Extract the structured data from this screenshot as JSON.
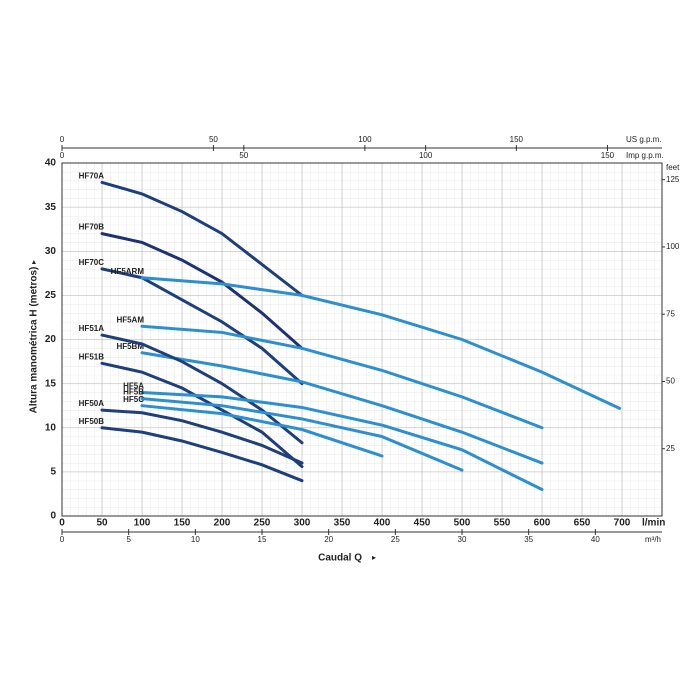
{
  "chart_data": {
    "type": "line",
    "x_label": "Caudal Q",
    "x_unit": "l/min",
    "y_label": "Altura manométrica H (metros)",
    "xlim": [
      0,
      750
    ],
    "xticks": [
      0,
      50,
      100,
      150,
      200,
      250,
      300,
      350,
      400,
      450,
      500,
      550,
      600,
      650,
      700
    ],
    "ylim": [
      0,
      40
    ],
    "yticks": [
      0,
      5,
      10,
      15,
      20,
      25,
      30,
      35,
      40
    ],
    "grid": true,
    "top_axis_us": {
      "label": "US g.p.m.",
      "lim": [
        0,
        198.1
      ],
      "ticks": [
        0,
        50,
        100,
        150
      ]
    },
    "top_axis_imp": {
      "label": "Imp g.p.m.",
      "lim": [
        0,
        165
      ],
      "ticks": [
        0,
        50,
        100,
        150
      ]
    },
    "bottom_axis_m3h": {
      "label": "m³/h",
      "lim": [
        0,
        45
      ],
      "ticks": [
        0,
        5,
        10,
        15,
        20,
        25,
        30,
        35,
        40
      ]
    },
    "right_axis_feet": {
      "label": "feet",
      "lim": [
        0,
        131.2
      ],
      "ticks": [
        25,
        50,
        75,
        100,
        125
      ]
    },
    "series": [
      {
        "name": "HF70A",
        "color": "#1d3f7c",
        "x": [
          50,
          100,
          150,
          200,
          250,
          300
        ],
        "values": [
          37.8,
          36.5,
          34.5,
          32,
          28.5,
          25
        ]
      },
      {
        "name": "HF70B",
        "color": "#1d3274",
        "x": [
          50,
          100,
          150,
          200,
          250,
          300
        ],
        "values": [
          32,
          31,
          29,
          26.5,
          23,
          19
        ]
      },
      {
        "name": "HF70C",
        "color": "#1d3f7c",
        "x": [
          50,
          100,
          150,
          200,
          250,
          300
        ],
        "values": [
          28,
          27,
          24.5,
          22,
          19,
          15
        ]
      },
      {
        "name": "HF5ARM",
        "color": "#2b8fd0",
        "x": [
          100,
          200,
          300,
          400,
          500,
          600,
          697
        ],
        "values": [
          27,
          26.3,
          25,
          22.8,
          20,
          16.3,
          12.2
        ]
      },
      {
        "name": "HF5AM",
        "color": "#2b8fd0",
        "x": [
          100,
          200,
          300,
          400,
          500,
          600
        ],
        "values": [
          21.5,
          20.8,
          19,
          16.5,
          13.5,
          10
        ]
      },
      {
        "name": "HF5BM",
        "color": "#2b8fd0",
        "x": [
          100,
          200,
          300,
          400,
          500,
          600
        ],
        "values": [
          18.5,
          17,
          15.2,
          12.5,
          9.5,
          6
        ]
      },
      {
        "name": "HF51A",
        "color": "#1d3f7c",
        "x": [
          50,
          100,
          150,
          200,
          250,
          300
        ],
        "values": [
          20.5,
          19.5,
          17.5,
          15,
          12,
          8.3
        ]
      },
      {
        "name": "HF51B",
        "color": "#1d3f7c",
        "x": [
          50,
          100,
          150,
          200,
          250,
          300
        ],
        "values": [
          17.3,
          16.3,
          14.5,
          12,
          9.5,
          5.6
        ]
      },
      {
        "name": "HF5A",
        "color": "#2b8fd0",
        "x": [
          100,
          200,
          300,
          400,
          500,
          600
        ],
        "values": [
          14,
          13.5,
          12.3,
          10.3,
          7.5,
          3
        ]
      },
      {
        "name": "HF5B",
        "color": "#2b8fd0",
        "x": [
          100,
          200,
          300,
          400,
          500
        ],
        "values": [
          13.3,
          12.5,
          11,
          9,
          5.2
        ]
      },
      {
        "name": "HF5C",
        "color": "#2b8fd0",
        "x": [
          100,
          200,
          300,
          400
        ],
        "values": [
          12.5,
          11.6,
          9.8,
          6.8
        ]
      },
      {
        "name": "HF50A",
        "color": "#1d3f7c",
        "x": [
          50,
          100,
          150,
          200,
          250,
          300
        ],
        "values": [
          12,
          11.7,
          10.8,
          9.5,
          8,
          6
        ]
      },
      {
        "name": "HF50B",
        "color": "#1d3f7c",
        "x": [
          50,
          100,
          150,
          200,
          250,
          300
        ],
        "values": [
          10,
          9.5,
          8.5,
          7.2,
          5.8,
          4
        ]
      }
    ]
  }
}
